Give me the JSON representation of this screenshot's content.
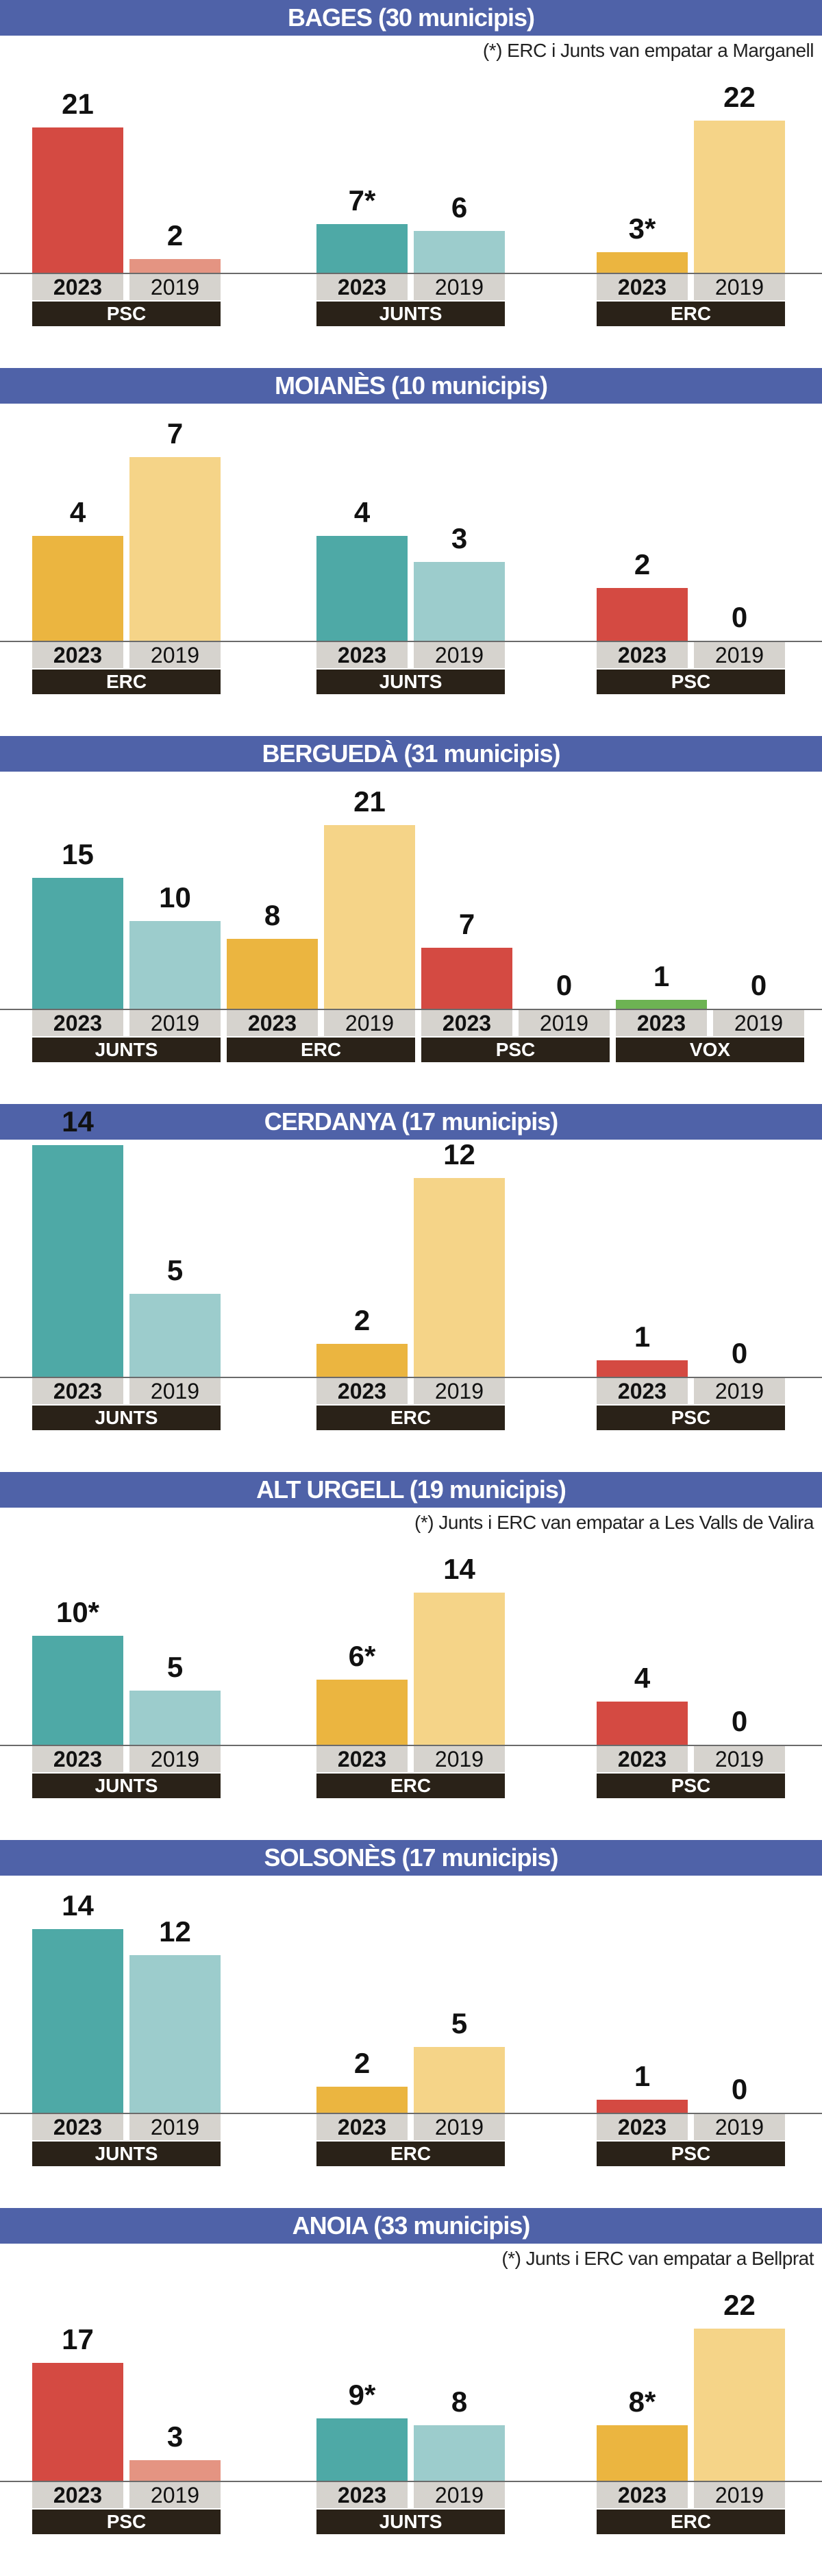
{
  "colors": {
    "header": "#4f62a8",
    "PSC": {
      "2023": "#d44a42",
      "2019": "#e49482"
    },
    "JUNTS": {
      "2023": "#4ea9a6",
      "2019": "#9ccccc"
    },
    "ERC": {
      "2023": "#ebb540",
      "2019": "#f5d488"
    },
    "VOX": {
      "2023": "#6db353",
      "2019": "#b5d9a5"
    },
    "year_label_bg": "#d6d3ce",
    "party_label_bg": "#2a2218"
  },
  "chart_data": [
    {
      "type": "bar",
      "title": "BAGES (30 municipis)",
      "note": "(*) ERC i Junts van empatar a Marganell",
      "groups": [
        {
          "party": "PSC",
          "bars": [
            {
              "year": "2023",
              "value": 21,
              "label": "21"
            },
            {
              "year": "2019",
              "value": 2,
              "label": "2"
            }
          ]
        },
        {
          "party": "JUNTS",
          "bars": [
            {
              "year": "2023",
              "value": 7,
              "label": "7*"
            },
            {
              "year": "2019",
              "value": 6,
              "label": "6"
            }
          ]
        },
        {
          "party": "ERC",
          "bars": [
            {
              "year": "2023",
              "value": 3,
              "label": "3*"
            },
            {
              "year": "2019",
              "value": 22,
              "label": "22"
            }
          ]
        }
      ]
    },
    {
      "type": "bar",
      "title": "MOIANÈS (10 municipis)",
      "note": "",
      "groups": [
        {
          "party": "ERC",
          "bars": [
            {
              "year": "2023",
              "value": 4,
              "label": "4"
            },
            {
              "year": "2019",
              "value": 7,
              "label": "7"
            }
          ]
        },
        {
          "party": "JUNTS",
          "bars": [
            {
              "year": "2023",
              "value": 4,
              "label": "4"
            },
            {
              "year": "2019",
              "value": 3,
              "label": "3"
            }
          ]
        },
        {
          "party": "PSC",
          "bars": [
            {
              "year": "2023",
              "value": 2,
              "label": "2"
            },
            {
              "year": "2019",
              "value": 0,
              "label": "0"
            }
          ]
        }
      ]
    },
    {
      "type": "bar",
      "title": "BERGUEDÀ (31 municipis)",
      "note": "",
      "groups": [
        {
          "party": "JUNTS",
          "bars": [
            {
              "year": "2023",
              "value": 15,
              "label": "15"
            },
            {
              "year": "2019",
              "value": 10,
              "label": "10"
            }
          ]
        },
        {
          "party": "ERC",
          "bars": [
            {
              "year": "2023",
              "value": 8,
              "label": "8"
            },
            {
              "year": "2019",
              "value": 21,
              "label": "21"
            }
          ]
        },
        {
          "party": "PSC",
          "bars": [
            {
              "year": "2023",
              "value": 7,
              "label": "7"
            },
            {
              "year": "2019",
              "value": 0,
              "label": "0"
            }
          ]
        },
        {
          "party": "VOX",
          "bars": [
            {
              "year": "2023",
              "value": 1,
              "label": "1"
            },
            {
              "year": "2019",
              "value": 0,
              "label": "0"
            }
          ]
        }
      ]
    },
    {
      "type": "bar",
      "title": "CERDANYA (17 municipis)",
      "note": "",
      "groups": [
        {
          "party": "JUNTS",
          "bars": [
            {
              "year": "2023",
              "value": 14,
              "label": "14"
            },
            {
              "year": "2019",
              "value": 5,
              "label": "5"
            }
          ]
        },
        {
          "party": "ERC",
          "bars": [
            {
              "year": "2023",
              "value": 2,
              "label": "2"
            },
            {
              "year": "2019",
              "value": 12,
              "label": "12"
            }
          ]
        },
        {
          "party": "PSC",
          "bars": [
            {
              "year": "2023",
              "value": 1,
              "label": "1"
            },
            {
              "year": "2019",
              "value": 0,
              "label": "0"
            }
          ]
        }
      ]
    },
    {
      "type": "bar",
      "title": "ALT URGELL (19 municipis)",
      "note": "(*) Junts i ERC van empatar a Les Valls de Valira",
      "groups": [
        {
          "party": "JUNTS",
          "bars": [
            {
              "year": "2023",
              "value": 10,
              "label": "10*"
            },
            {
              "year": "2019",
              "value": 5,
              "label": "5"
            }
          ]
        },
        {
          "party": "ERC",
          "bars": [
            {
              "year": "2023",
              "value": 6,
              "label": "6*"
            },
            {
              "year": "2019",
              "value": 14,
              "label": "14"
            }
          ]
        },
        {
          "party": "PSC",
          "bars": [
            {
              "year": "2023",
              "value": 4,
              "label": "4"
            },
            {
              "year": "2019",
              "value": 0,
              "label": "0"
            }
          ]
        }
      ]
    },
    {
      "type": "bar",
      "title": "SOLSONÈS (17 municipis)",
      "note": "",
      "groups": [
        {
          "party": "JUNTS",
          "bars": [
            {
              "year": "2023",
              "value": 14,
              "label": "14"
            },
            {
              "year": "2019",
              "value": 12,
              "label": "12"
            }
          ]
        },
        {
          "party": "ERC",
          "bars": [
            {
              "year": "2023",
              "value": 2,
              "label": "2"
            },
            {
              "year": "2019",
              "value": 5,
              "label": "5"
            }
          ]
        },
        {
          "party": "PSC",
          "bars": [
            {
              "year": "2023",
              "value": 1,
              "label": "1"
            },
            {
              "year": "2019",
              "value": 0,
              "label": "0"
            }
          ]
        }
      ]
    },
    {
      "type": "bar",
      "title": "ANOIA (33 municipis)",
      "note": "(*) Junts i ERC van empatar a Bellprat",
      "groups": [
        {
          "party": "PSC",
          "bars": [
            {
              "year": "2023",
              "value": 17,
              "label": "17"
            },
            {
              "year": "2019",
              "value": 3,
              "label": "3"
            }
          ]
        },
        {
          "party": "JUNTS",
          "bars": [
            {
              "year": "2023",
              "value": 9,
              "label": "9*"
            },
            {
              "year": "2019",
              "value": 8,
              "label": "8"
            }
          ]
        },
        {
          "party": "ERC",
          "bars": [
            {
              "year": "2023",
              "value": 8,
              "label": "8*"
            },
            {
              "year": "2019",
              "value": 22,
              "label": "22"
            }
          ]
        }
      ]
    }
  ]
}
